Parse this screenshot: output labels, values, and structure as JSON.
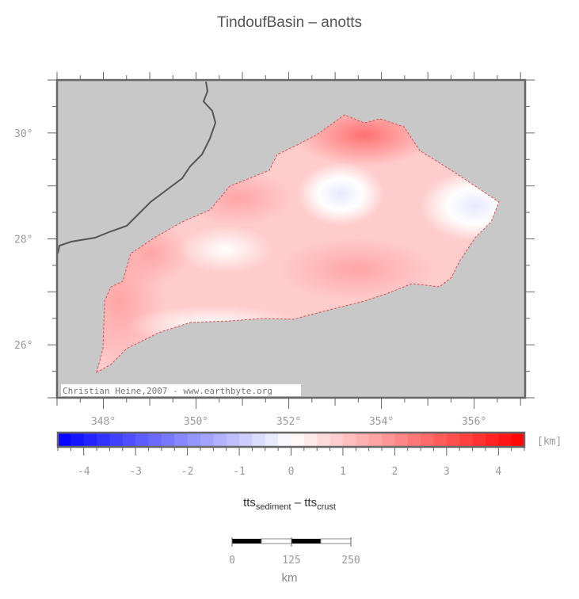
{
  "title": "TindoufBasin – anotts",
  "credit": "Christian Heine,2007 - www.earthbyte.org",
  "map": {
    "lon_range": [
      347,
      357.1
    ],
    "lat_range": [
      25,
      31
    ],
    "lon_labels": [
      "348°",
      "350°",
      "352°",
      "354°",
      "356°"
    ],
    "lat_labels": [
      "30°",
      "28°",
      "26°"
    ],
    "land_color": "#c8c8c8"
  },
  "colorbar": {
    "range": [
      -4.5,
      4.5
    ],
    "step": 0.25,
    "tick_labels": [
      "-4",
      "-3",
      "-2",
      "-1",
      "0",
      "1",
      "2",
      "3",
      "4"
    ],
    "unit": "[km]",
    "colors": {
      "low": "#0000ff",
      "mid": "#ffffff",
      "high": "#ff0000"
    }
  },
  "xlabel": {
    "a": "tts",
    "a_sub": "sediment",
    "op": " – ",
    "b": "tts",
    "b_sub": "crust"
  },
  "scalebar": {
    "labels": [
      "0",
      "125",
      "250"
    ],
    "unit": "km"
  }
}
